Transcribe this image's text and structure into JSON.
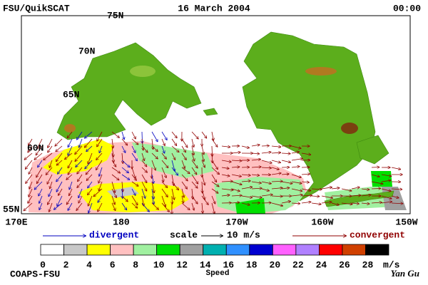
{
  "header": {
    "left": "FSU/QuikSCAT",
    "center": "16 March 2004",
    "right": "00:00"
  },
  "map": {
    "lat_labels": [
      "75N",
      "70N",
      "65N",
      "60N",
      "55N"
    ],
    "lon_labels": [
      "170E",
      "180",
      "170W",
      "160W",
      "150W"
    ]
  },
  "legend": {
    "divergent": "divergent",
    "scale": "scale",
    "scale_value": "10 m/s",
    "convergent": "convergent"
  },
  "colorbar": {
    "colors": [
      "#ffffff",
      "#c8c8c8",
      "#ffff00",
      "#ffc0c0",
      "#a0f0a0",
      "#00e000",
      "#a0a0a0",
      "#00b0b0",
      "#3090ff",
      "#0000d0",
      "#ff60ff",
      "#b080ff",
      "#ff0000",
      "#d04000",
      "#000000"
    ],
    "labels": [
      0,
      2,
      4,
      6,
      8,
      10,
      12,
      14,
      16,
      18,
      20,
      22,
      24,
      26,
      28
    ],
    "unit": "m/s",
    "title": "Speed"
  },
  "footer": {
    "left": "COAPS-FSU",
    "right": "Yan Gu"
  }
}
